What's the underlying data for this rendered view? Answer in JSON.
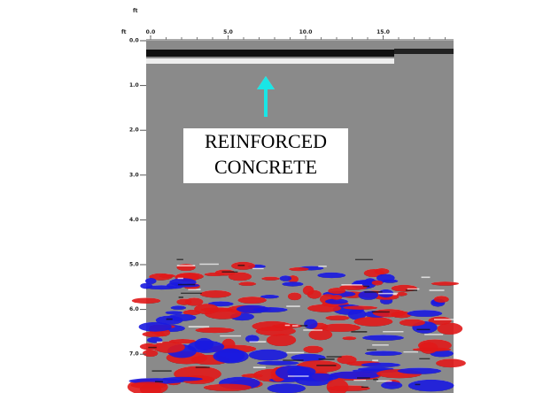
{
  "scan": {
    "x_unit": "ft",
    "y_unit": "ft",
    "x_ticks": [
      "0.0",
      "5.0",
      "10.0",
      "15.0"
    ],
    "y_ticks": [
      "0.0",
      "1.0",
      "2.0",
      "3.0",
      "4.0",
      "5.0",
      "6.0",
      "7.0"
    ]
  },
  "annotation": {
    "lines": [
      "REINFORCED",
      "CONCRETE"
    ]
  }
}
